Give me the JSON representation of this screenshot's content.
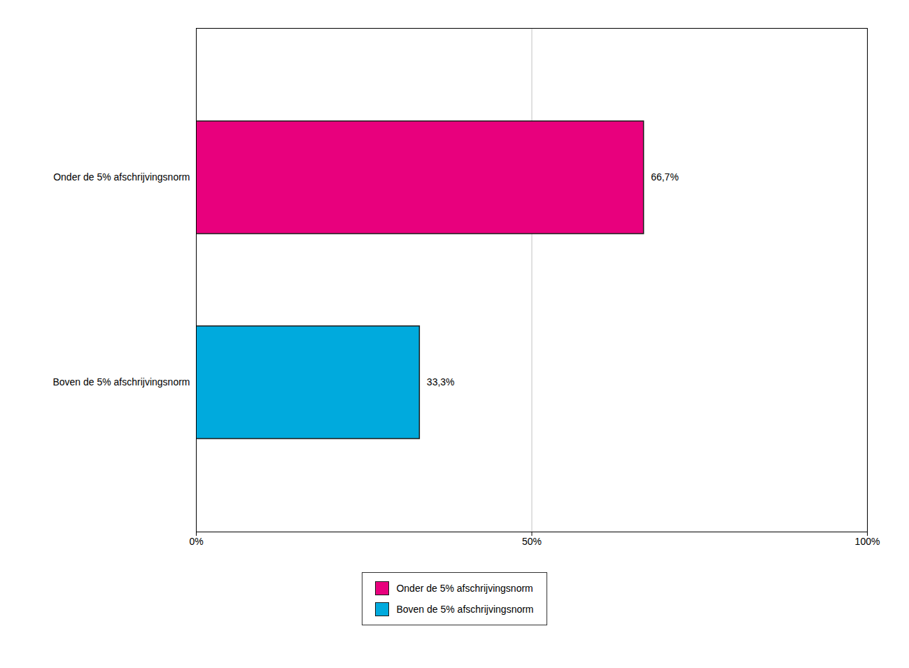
{
  "chart_data": {
    "type": "bar",
    "orientation": "horizontal",
    "categories": [
      "Onder de 5% afschrijvingsnorm",
      "Boven de 5% afschrijvingsnorm"
    ],
    "values": [
      66.7,
      33.3
    ],
    "value_labels": [
      "66,7%",
      "33,3%"
    ],
    "data_labels": true,
    "colors": [
      "#E8007D",
      "#00AADD"
    ],
    "xlim": [
      0,
      100
    ],
    "xticks": [
      {
        "value": 0,
        "label": "0%"
      },
      {
        "value": 50,
        "label": "50%"
      },
      {
        "value": 100,
        "label": "100%"
      }
    ],
    "grid": true,
    "legend": "bottom"
  }
}
